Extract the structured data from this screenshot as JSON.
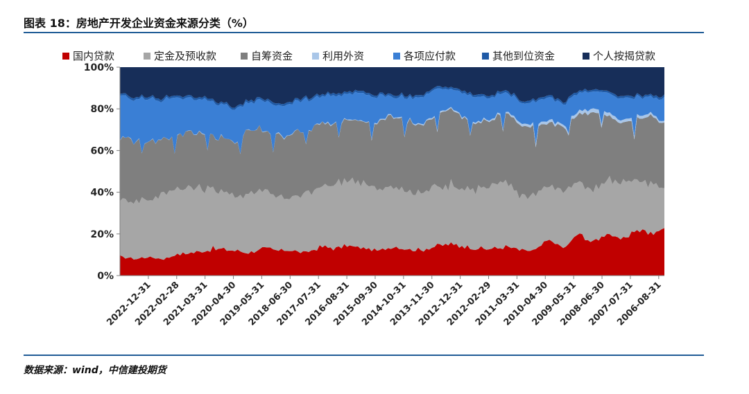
{
  "header": {
    "title": "图表 18：房地产开发企业资金来源分类（%）"
  },
  "footer": {
    "source": "数据来源：wind，中信建投期货"
  },
  "chart_data": {
    "type": "area",
    "stacked": true,
    "ylim": [
      0,
      100
    ],
    "yticks": [
      "0%",
      "20%",
      "40%",
      "60%",
      "80%",
      "100%"
    ],
    "x_tick_labels": [
      "2022-12-31",
      "2022-02-28",
      "2021-03-31",
      "2020-04-30",
      "2019-05-31",
      "2018-06-30",
      "2017-07-31",
      "2016-08-31",
      "2015-09-30",
      "2014-10-31",
      "2013-11-30",
      "2012-12-31",
      "2012-02-29",
      "2011-03-31",
      "2010-04-30",
      "2009-05-31",
      "2008-06-30",
      "2007-07-31",
      "2006-08-31"
    ],
    "legend_position": "top",
    "series": [
      {
        "name": "国内贷款",
        "color": "#c00000",
        "keys": [
          9,
          8,
          9,
          8,
          10,
          11,
          12,
          13,
          12,
          11,
          13,
          12,
          12,
          11,
          14,
          13,
          14,
          13,
          12,
          14,
          13,
          12,
          14,
          15,
          14,
          13,
          13,
          14,
          12,
          12,
          17,
          13,
          20,
          16,
          21,
          17,
          22,
          20,
          23
        ],
        "values": []
      },
      {
        "name": "定金及预收款",
        "color": "#a6a6a6",
        "keys": [
          27,
          28,
          28,
          31,
          32,
          31,
          30,
          28,
          26,
          29,
          28,
          26,
          25,
          28,
          29,
          30,
          31,
          32,
          29,
          29,
          28,
          27,
          29,
          28,
          28,
          29,
          30,
          31,
          26,
          27,
          25,
          28,
          25,
          24,
          26,
          28,
          24,
          24,
          19
        ],
        "values": []
      },
      {
        "name": "自筹资金",
        "color": "#7f7f7f",
        "keys": [
          29,
          30,
          28,
          26,
          26,
          27,
          26,
          25,
          26,
          30,
          29,
          29,
          31,
          30,
          30,
          30,
          30,
          29,
          32,
          34,
          33,
          33,
          34,
          37,
          34,
          31,
          32,
          33,
          34,
          32,
          31,
          30,
          33,
          38,
          30,
          28,
          29,
          32,
          31
        ],
        "values": []
      },
      {
        "name": "利用外资",
        "color": "#a9c6e8",
        "keys": [
          0.1,
          0.1,
          0.1,
          0.1,
          0.1,
          0.1,
          0.1,
          0.1,
          0.1,
          0.1,
          0.1,
          0.2,
          0.2,
          0.2,
          0.2,
          0.3,
          0.3,
          0.3,
          0.4,
          0.4,
          0.5,
          0.4,
          0.6,
          0.6,
          0.5,
          0.5,
          0.7,
          0.8,
          1.1,
          1.3,
          1.2,
          1.0,
          1.5,
          2.0,
          1.6,
          1.4,
          1.3,
          1.2,
          0.7
        ],
        "values": []
      },
      {
        "name": "各项应付款",
        "color": "#3a7fd5",
        "keys": [
          20,
          19,
          20,
          19,
          18,
          16,
          17,
          16,
          16,
          13,
          14,
          14,
          15,
          15,
          13,
          13,
          12,
          13,
          12,
          9,
          11,
          13,
          12,
          9,
          11,
          12,
          10,
          9,
          10,
          11,
          11,
          10,
          9,
          8,
          9,
          10,
          9,
          8,
          11
        ],
        "values": []
      },
      {
        "name": "其他到位资金",
        "color": "#1f5aa6",
        "keys": [
          1,
          1,
          1,
          1,
          1,
          1,
          1,
          1,
          1,
          1,
          1,
          1,
          1,
          1,
          1,
          1,
          1,
          1,
          1,
          1,
          1,
          1,
          1,
          1,
          1,
          1,
          1,
          1,
          1,
          1,
          1,
          1,
          1,
          1,
          1,
          1,
          1,
          1,
          1
        ],
        "values": []
      },
      {
        "name": "个人按揭贷款",
        "color": "#172e59",
        "keys": [
          12.9,
          13.9,
          13.9,
          14.9,
          12.9,
          13.9,
          13.9,
          16.9,
          18.9,
          15.9,
          14.9,
          17.8,
          15.8,
          14.8,
          12.8,
          12.7,
          11.7,
          11.7,
          13.6,
          12.6,
          13.5,
          13.6,
          9.4,
          9.4,
          11.5,
          13.5,
          13.3,
          11.2,
          15.9,
          15.7,
          13.8,
          17.0,
          10.5,
          11.0,
          11.4,
          14.6,
          13.7,
          13.8,
          14.3
        ],
        "values": []
      }
    ]
  }
}
